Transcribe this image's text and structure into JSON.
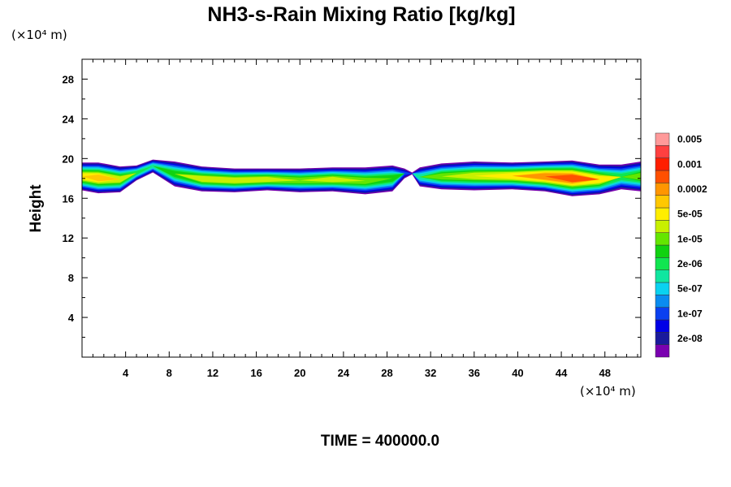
{
  "chart_data": {
    "type": "heatmap",
    "title": "NH3-s-Rain Mixing Ratio [kg/kg]",
    "ylabel": "Height",
    "x_unit_label": "(×10⁴ m)",
    "y_unit_label": "(×10⁴ m)",
    "time_label": "TIME = 400000.0",
    "xlim": [
      0,
      51.3
    ],
    "ylim": [
      0,
      30
    ],
    "x_ticks": [
      4,
      8,
      12,
      16,
      20,
      24,
      28,
      32,
      36,
      40,
      44,
      48
    ],
    "x_tick_labels": [
      "4",
      "8",
      "12",
      "16",
      "20",
      "24",
      "28",
      "32",
      "36",
      "40",
      "44",
      "48"
    ],
    "y_ticks": [
      4,
      8,
      12,
      16,
      20,
      24,
      28
    ],
    "y_tick_labels": [
      "4",
      "8",
      "12",
      "16",
      "20",
      "24",
      "28"
    ],
    "colorbar": {
      "colors": [
        "#7a00b0",
        "#1a1a9c",
        "#0000e6",
        "#0a40f0",
        "#0a8cf0",
        "#0ad2f0",
        "#10e6a0",
        "#10e650",
        "#10d210",
        "#64e600",
        "#c8f000",
        "#ffee00",
        "#ffc800",
        "#ff9600",
        "#ff5000",
        "#ff1e00",
        "#ff4040",
        "#ff9a9a"
      ],
      "labels": [
        "2e-08",
        "1e-07",
        "5e-07",
        "2e-06",
        "1e-05",
        "5e-05",
        "0.0002",
        "0.001",
        "0.005"
      ]
    },
    "layer": {
      "x_range": [
        0,
        51.3
      ],
      "profile": [
        {
          "x": 0.0,
          "bottom": 16.8,
          "top": 19.6,
          "level": 12
        },
        {
          "x": 1.5,
          "bottom": 16.5,
          "top": 19.6,
          "level": 13
        },
        {
          "x": 3.5,
          "bottom": 16.6,
          "top": 19.2,
          "level": 11
        },
        {
          "x": 5.0,
          "bottom": 17.8,
          "top": 19.3,
          "level": 8
        },
        {
          "x": 6.5,
          "bottom": 18.6,
          "top": 19.9,
          "level": 7
        },
        {
          "x": 8.5,
          "bottom": 17.2,
          "top": 19.7,
          "level": 9
        },
        {
          "x": 11.0,
          "bottom": 16.7,
          "top": 19.2,
          "level": 11
        },
        {
          "x": 14.0,
          "bottom": 16.6,
          "top": 19.0,
          "level": 11
        },
        {
          "x": 17.0,
          "bottom": 16.8,
          "top": 19.0,
          "level": 11
        },
        {
          "x": 20.0,
          "bottom": 16.6,
          "top": 19.0,
          "level": 10
        },
        {
          "x": 23.0,
          "bottom": 16.7,
          "top": 19.1,
          "level": 11
        },
        {
          "x": 26.0,
          "bottom": 16.4,
          "top": 19.1,
          "level": 10
        },
        {
          "x": 28.5,
          "bottom": 16.7,
          "top": 19.3,
          "level": 9
        },
        {
          "x": 29.6,
          "bottom": 18.0,
          "top": 19.0,
          "level": 4
        },
        {
          "x": 30.3,
          "bottom": 18.4,
          "top": 18.6,
          "level": 0
        },
        {
          "x": 31.0,
          "bottom": 17.2,
          "top": 19.1,
          "level": 7
        },
        {
          "x": 33.0,
          "bottom": 16.9,
          "top": 19.5,
          "level": 10
        },
        {
          "x": 36.0,
          "bottom": 16.8,
          "top": 19.7,
          "level": 11
        },
        {
          "x": 39.5,
          "bottom": 16.9,
          "top": 19.6,
          "level": 12
        },
        {
          "x": 42.5,
          "bottom": 16.7,
          "top": 19.7,
          "level": 14
        },
        {
          "x": 45.0,
          "bottom": 16.2,
          "top": 19.8,
          "level": 15
        },
        {
          "x": 47.5,
          "bottom": 16.4,
          "top": 19.4,
          "level": 12
        },
        {
          "x": 49.5,
          "bottom": 16.9,
          "top": 19.4,
          "level": 8
        },
        {
          "x": 51.3,
          "bottom": 16.7,
          "top": 19.7,
          "level": 10
        }
      ]
    }
  }
}
